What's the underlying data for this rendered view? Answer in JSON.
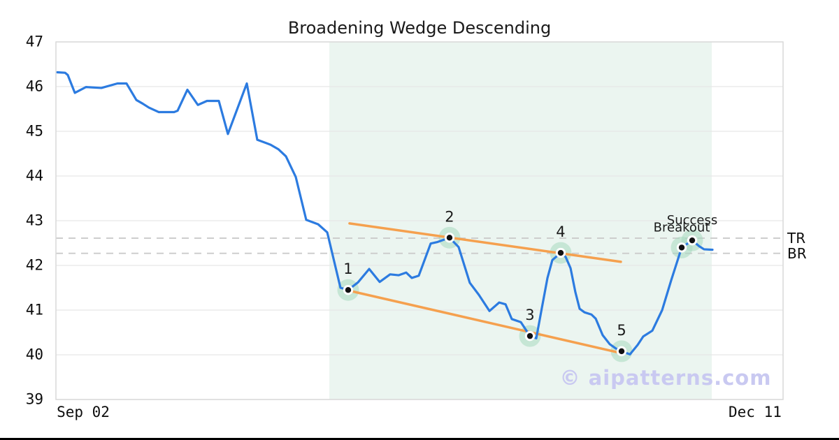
{
  "title": "Broadening Wedge Descending",
  "watermark": "© aipatterns.com",
  "colors": {
    "price_line": "#2c7be0",
    "trendline": "#f5a04e",
    "marker_halo": "#a8d9bf",
    "marker_ring": "#ffffff",
    "marker_dot": "#111111",
    "pattern_region": "#ebf5f0",
    "grid": "#e7e7e7",
    "dashed_level": "#cdcdcd",
    "plot_border": "#d9d9d9",
    "text": "#1a1a1a",
    "watermark": "#c9c9f1"
  },
  "chart_data": {
    "type": "line",
    "title": "Broadening Wedge Descending",
    "xlabel": "",
    "ylabel": "",
    "ylim": [
      39,
      47
    ],
    "yticks": [
      39,
      40,
      41,
      42,
      43,
      44,
      45,
      46,
      47
    ],
    "grid": "horizontal",
    "legend": "none",
    "x_tick_labels": [
      {
        "label": "Sep 02",
        "pos": 0.0375
      },
      {
        "label": "Dec 11",
        "pos": 0.9615
      }
    ],
    "region": {
      "x0": 0.376,
      "x1": 0.902
    },
    "levels": [
      {
        "label": "TR",
        "value": 42.61
      },
      {
        "label": "BR",
        "value": 42.27
      }
    ],
    "trendlines": [
      {
        "name": "upper",
        "x0": 0.4038,
        "y0": 42.94,
        "x1": 0.7769,
        "y1": 42.08
      },
      {
        "name": "lower",
        "x0": 0.4019,
        "y0": 41.44,
        "x1": 0.774,
        "y1": 40.05
      }
    ],
    "points": [
      {
        "label": "1",
        "x": 0.4019,
        "y": 41.45
      },
      {
        "label": "2",
        "x": 0.5413,
        "y": 42.62
      },
      {
        "label": "3",
        "x": 0.6519,
        "y": 40.42
      },
      {
        "label": "4",
        "x": 0.6942,
        "y": 42.28
      },
      {
        "label": "5",
        "x": 0.7779,
        "y": 40.08
      },
      {
        "label": "Breakout",
        "x": 0.8606,
        "y": 42.4
      },
      {
        "label": "Success",
        "x": 0.875,
        "y": 42.56
      }
    ],
    "series": [
      {
        "name": "price",
        "x": [
          0.0019,
          0.0125,
          0.0163,
          0.026,
          0.0413,
          0.0625,
          0.0846,
          0.0971,
          0.1106,
          0.1192,
          0.1279,
          0.1413,
          0.1625,
          0.1673,
          0.1808,
          0.1952,
          0.2077,
          0.224,
          0.2365,
          0.2625,
          0.2769,
          0.2952,
          0.3058,
          0.3163,
          0.3298,
          0.3442,
          0.3606,
          0.3731,
          0.3913,
          0.4019,
          0.4154,
          0.4308,
          0.4452,
          0.4596,
          0.4712,
          0.4817,
          0.4894,
          0.499,
          0.5154,
          0.524,
          0.5413,
          0.5538,
          0.5692,
          0.5817,
          0.5962,
          0.6096,
          0.6183,
          0.6269,
          0.6394,
          0.6519,
          0.6606,
          0.6683,
          0.676,
          0.6827,
          0.6942,
          0.701,
          0.7077,
          0.7144,
          0.7202,
          0.7269,
          0.7365,
          0.7423,
          0.7519,
          0.7615,
          0.7702,
          0.7779,
          0.7894,
          0.8,
          0.8077,
          0.8202,
          0.8337,
          0.8462,
          0.8606,
          0.875,
          0.8846,
          0.8913,
          0.9029
        ],
        "y": [
          46.32,
          46.31,
          46.26,
          45.86,
          45.99,
          45.97,
          46.07,
          46.07,
          45.7,
          45.62,
          45.53,
          45.43,
          45.43,
          45.46,
          45.93,
          45.59,
          45.68,
          45.68,
          44.94,
          46.07,
          44.81,
          44.7,
          44.6,
          44.44,
          43.98,
          43.02,
          42.92,
          42.74,
          41.5,
          41.45,
          41.62,
          41.92,
          41.63,
          41.8,
          41.78,
          41.84,
          41.72,
          41.77,
          42.49,
          42.52,
          42.62,
          42.41,
          41.61,
          41.34,
          40.98,
          41.17,
          41.13,
          40.8,
          40.73,
          40.42,
          40.37,
          41.05,
          41.72,
          42.12,
          42.28,
          42.19,
          41.94,
          41.4,
          41.03,
          40.95,
          40.9,
          40.81,
          40.44,
          40.24,
          40.14,
          40.08,
          40.01,
          40.22,
          40.41,
          40.54,
          41.0,
          41.67,
          42.4,
          42.56,
          42.43,
          42.36,
          42.35
        ]
      }
    ]
  }
}
